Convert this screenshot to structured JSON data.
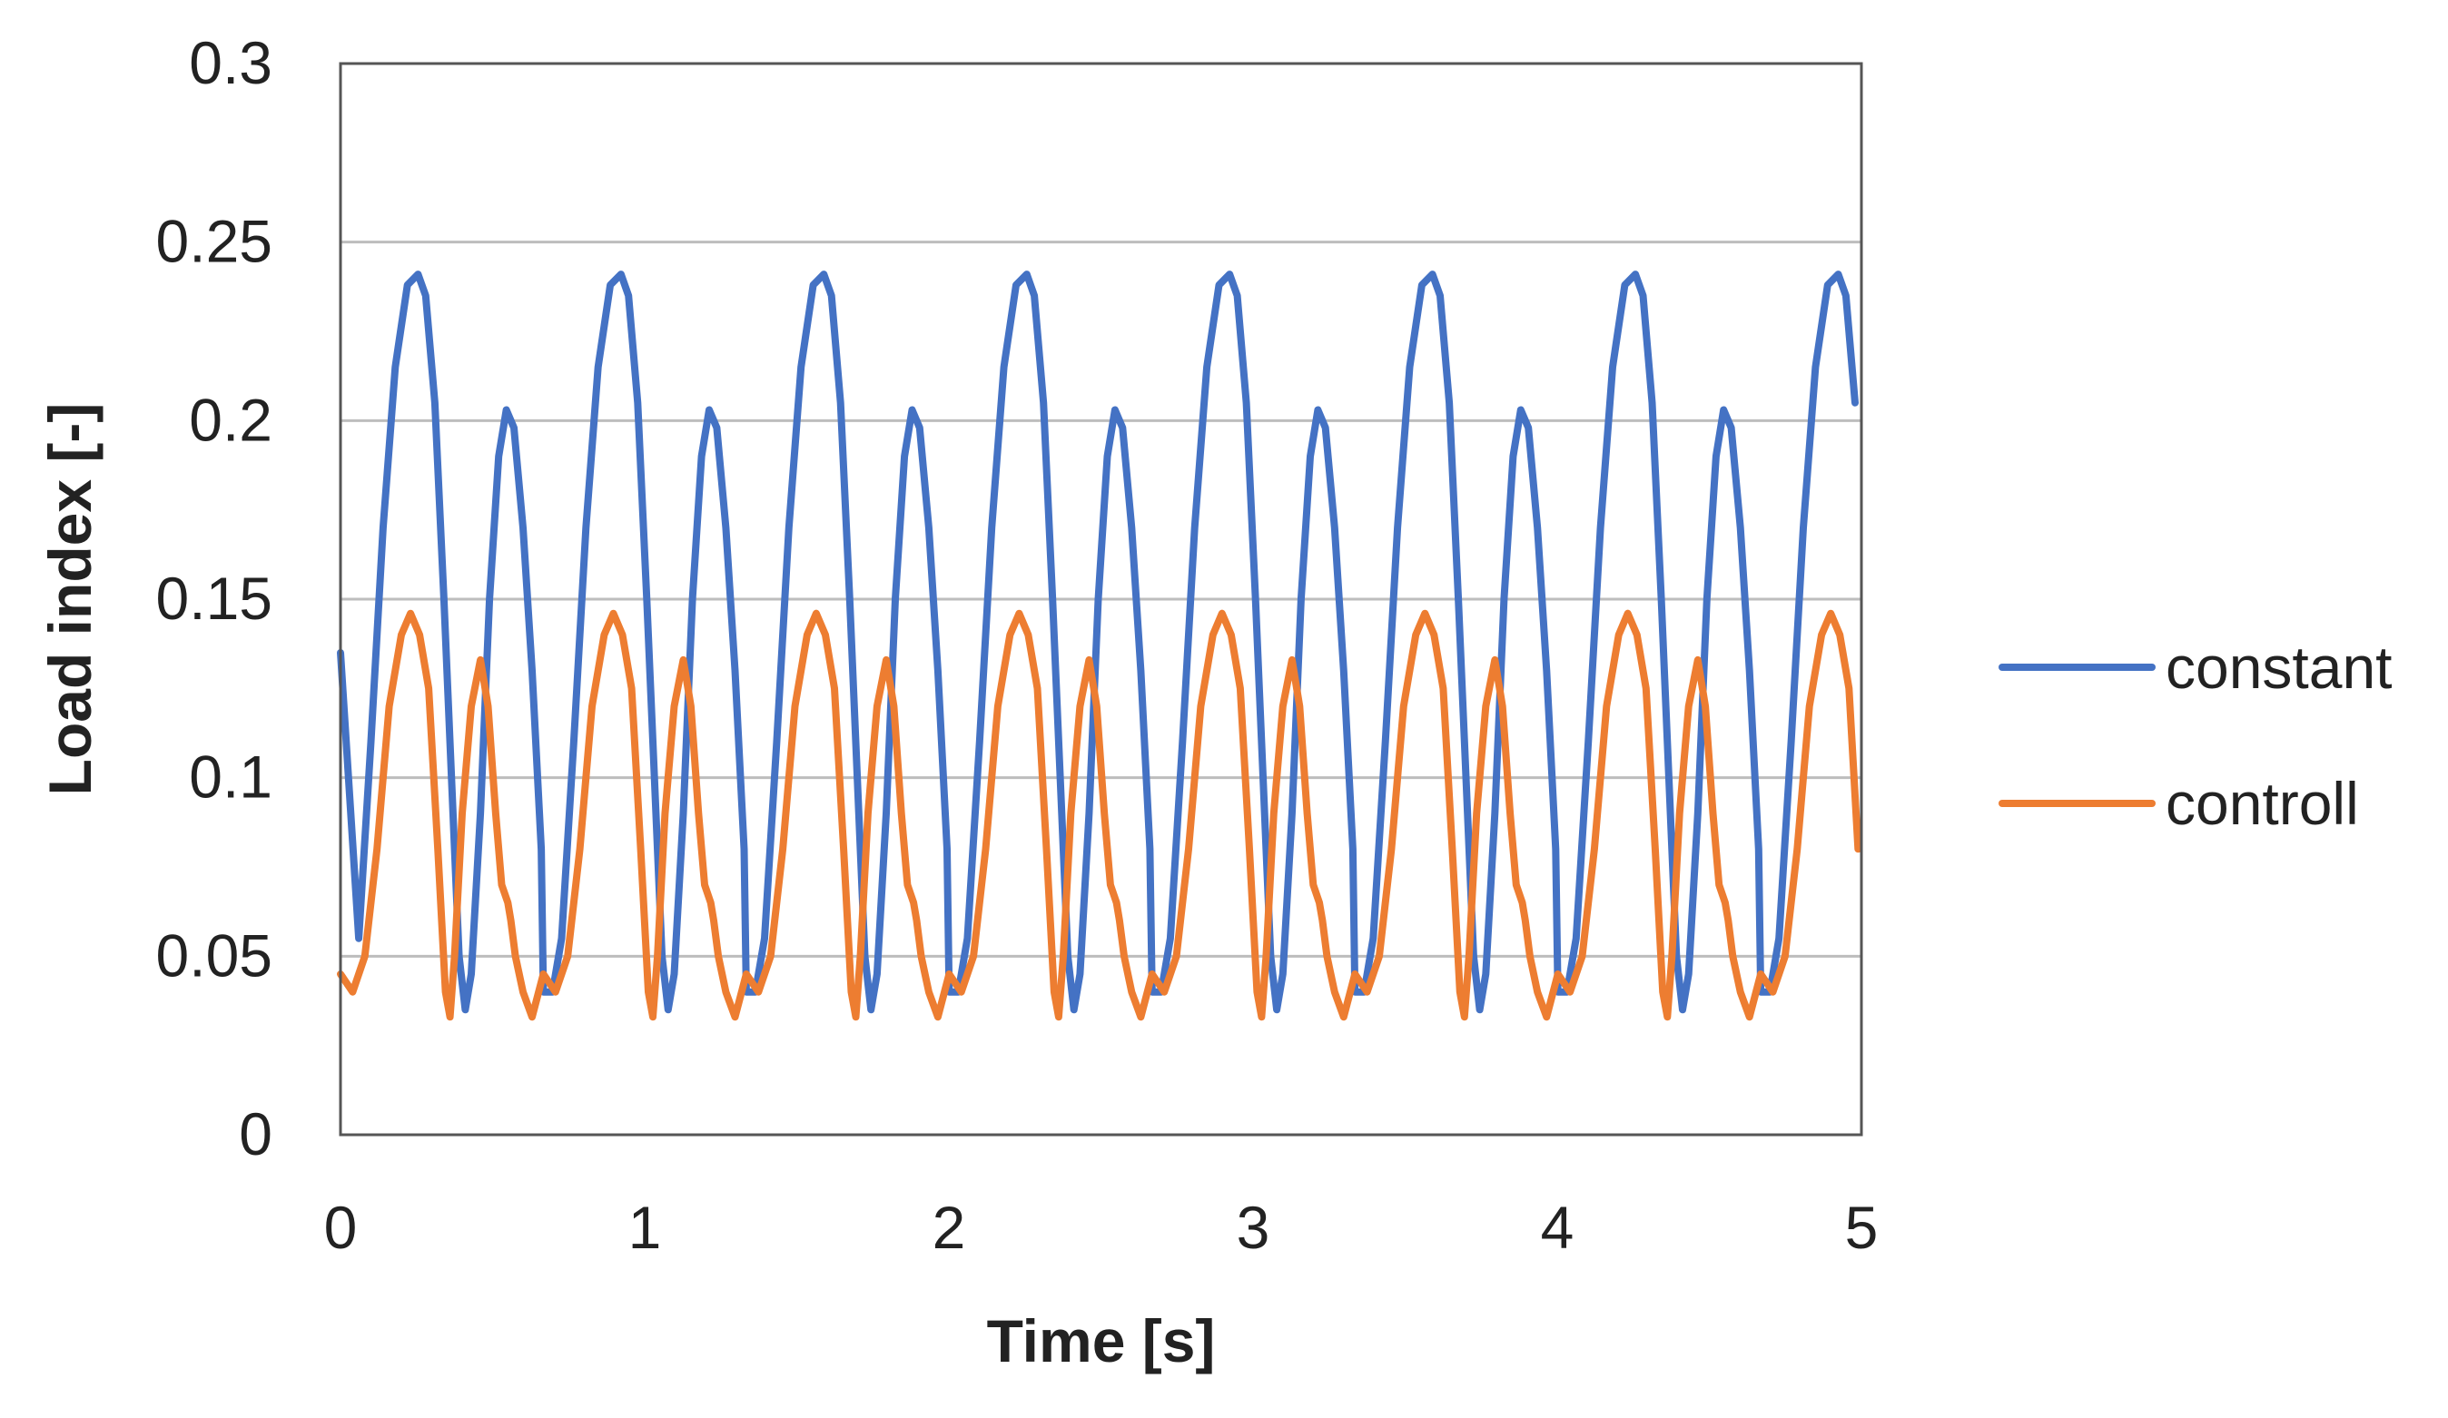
{
  "chart_data": {
    "type": "line",
    "title": "",
    "xlabel": "Time [s]",
    "ylabel": "Load index [-]",
    "xlim": [
      0,
      5
    ],
    "ylim": [
      0,
      0.3
    ],
    "x_ticks": [
      "0",
      "1",
      "2",
      "3",
      "4",
      "5"
    ],
    "y_ticks": [
      "0",
      "0.05",
      "0.1",
      "0.15",
      "0.2",
      "0.25",
      "0.3"
    ],
    "grid": "horizontal",
    "legend_position": "right",
    "cycle_period_s": 0.667,
    "series": [
      {
        "name": "constant",
        "color": "#4472C4",
        "cycle_profile": {
          "t": [
            0,
            0.03,
            0.06,
            0.1,
            0.14,
            0.18,
            0.22,
            0.255,
            0.28,
            0.31,
            0.34,
            0.37,
            0.39,
            0.41,
            0.43,
            0.46,
            0.49,
            0.52,
            0.545,
            0.57,
            0.6,
            0.63,
            0.66,
            0.667
          ],
          "y": [
            0.04,
            0.04,
            0.055,
            0.11,
            0.17,
            0.215,
            0.238,
            0.241,
            0.235,
            0.205,
            0.15,
            0.09,
            0.05,
            0.035,
            0.045,
            0.09,
            0.15,
            0.19,
            0.203,
            0.198,
            0.17,
            0.13,
            0.08,
            0.04
          ]
        },
        "start_offset_s": 0.667,
        "start_value": 0.135
      },
      {
        "name": "controll",
        "color": "#ED7D31",
        "cycle_profile": {
          "t": [
            0,
            0.04,
            0.08,
            0.12,
            0.16,
            0.2,
            0.23,
            0.26,
            0.29,
            0.32,
            0.345,
            0.36,
            0.375,
            0.4,
            0.43,
            0.46,
            0.485,
            0.51,
            0.53,
            0.55,
            0.56,
            0.575,
            0.6,
            0.63,
            0.667
          ],
          "y": [
            0.045,
            0.04,
            0.05,
            0.08,
            0.12,
            0.14,
            0.146,
            0.14,
            0.125,
            0.08,
            0.04,
            0.033,
            0.05,
            0.09,
            0.12,
            0.133,
            0.12,
            0.09,
            0.07,
            0.065,
            0.06,
            0.05,
            0.04,
            0.033,
            0.045
          ]
        },
        "start_offset_s": 0.667,
        "start_value": 0.045
      }
    ]
  }
}
